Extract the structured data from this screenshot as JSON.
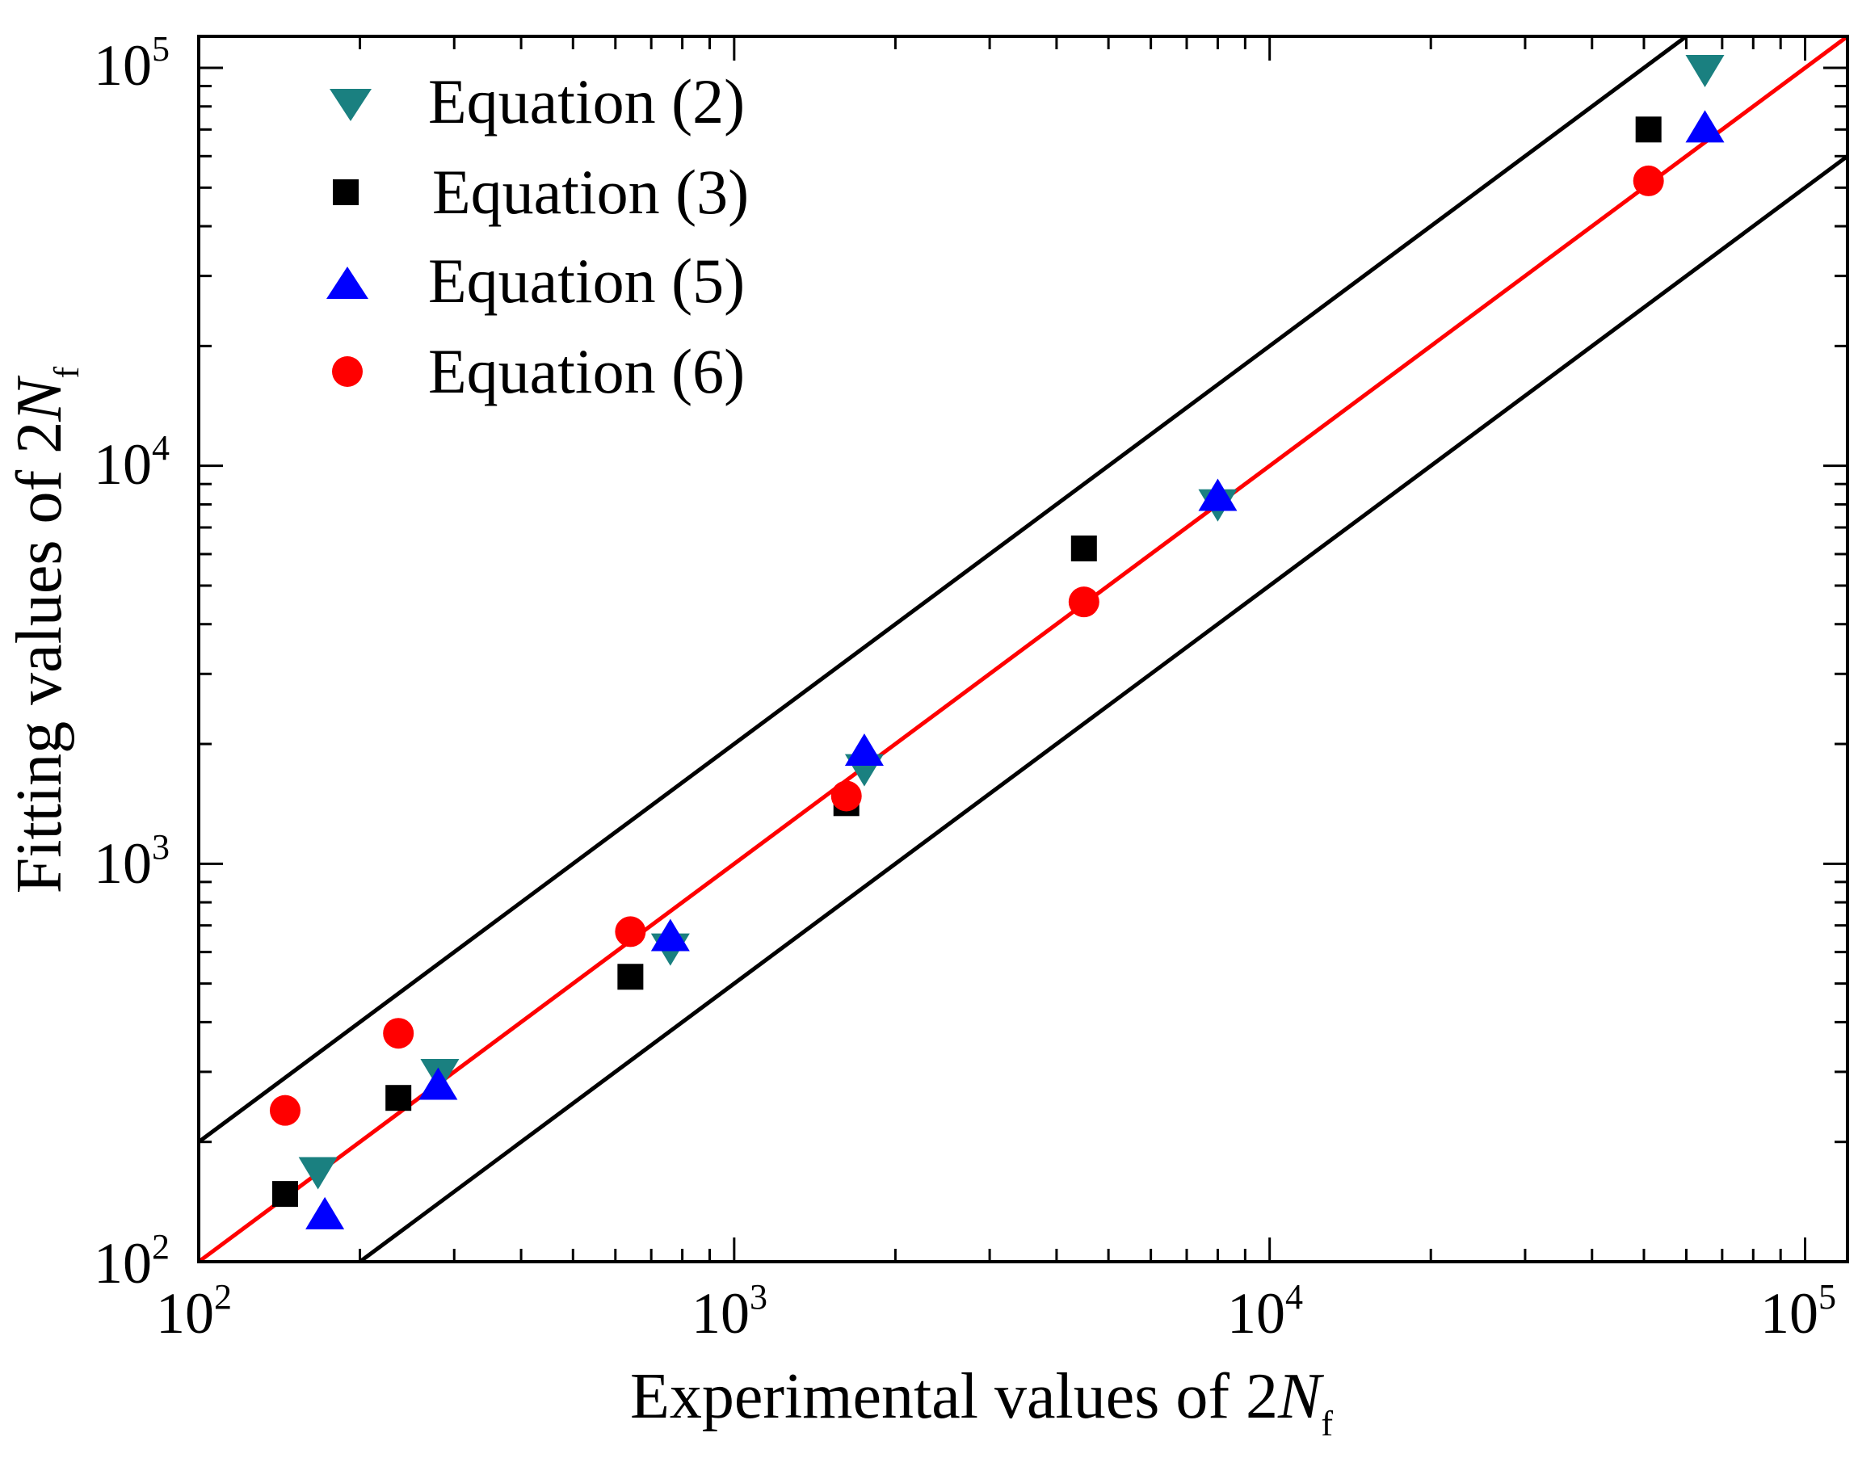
{
  "chart_data": {
    "type": "scatter",
    "scale": {
      "x": "log",
      "y": "log"
    },
    "xlim": [
      100,
      120000
    ],
    "ylim": [
      100,
      120000
    ],
    "xlabel": {
      "prefix": "Experimental values of 2",
      "symbol": "N",
      "subscript": "f"
    },
    "ylabel": {
      "prefix": "Fitting values of 2",
      "symbol": "N",
      "subscript": "f"
    },
    "x_ticks": [
      {
        "base": "10",
        "exp": "2",
        "value": 100
      },
      {
        "base": "10",
        "exp": "3",
        "value": 1000
      },
      {
        "base": "10",
        "exp": "4",
        "value": 10000
      },
      {
        "base": "10",
        "exp": "5",
        "value": 100000
      }
    ],
    "y_ticks": [
      {
        "base": "10",
        "exp": "2",
        "value": 100
      },
      {
        "base": "10",
        "exp": "3",
        "value": 1000
      },
      {
        "base": "10",
        "exp": "4",
        "value": 10000
      },
      {
        "base": "10",
        "exp": "5",
        "value": 100000
      }
    ],
    "reference_lines": [
      {
        "name": "perfect-fit",
        "factor": 1,
        "color": "#ff0000"
      },
      {
        "name": "upper-band",
        "factor": 2,
        "color": "#000000"
      },
      {
        "name": "lower-band",
        "factor": 0.5,
        "color": "#000000"
      }
    ],
    "legend": {
      "position": "top-left"
    },
    "series": [
      {
        "name": "Equation (2)",
        "marker": "triangle-down",
        "color": "#1a8080",
        "points": [
          [
            167,
            170
          ],
          [
            282,
            300
          ],
          [
            760,
            620
          ],
          [
            1750,
            1750
          ],
          [
            8000,
            8100
          ],
          [
            65000,
            100000
          ]
        ]
      },
      {
        "name": "Equation (3)",
        "marker": "square",
        "color": "#000000",
        "points": [
          [
            145,
            148
          ],
          [
            236,
            258
          ],
          [
            640,
            520
          ],
          [
            1620,
            1420
          ],
          [
            4500,
            6200
          ],
          [
            51000,
            70000
          ]
        ]
      },
      {
        "name": "Equation (5)",
        "marker": "triangle-up",
        "color": "#0000ff",
        "points": [
          [
            172,
            130
          ],
          [
            280,
            275
          ],
          [
            760,
            650
          ],
          [
            1750,
            1900
          ],
          [
            8000,
            8300
          ],
          [
            65000,
            70000
          ]
        ]
      },
      {
        "name": "Equation (6)",
        "marker": "circle",
        "color": "#ff0000",
        "points": [
          [
            145,
            240
          ],
          [
            236,
            375
          ],
          [
            640,
            675
          ],
          [
            1620,
            1480
          ],
          [
            4500,
            4550
          ],
          [
            51000,
            52000
          ]
        ]
      }
    ]
  }
}
